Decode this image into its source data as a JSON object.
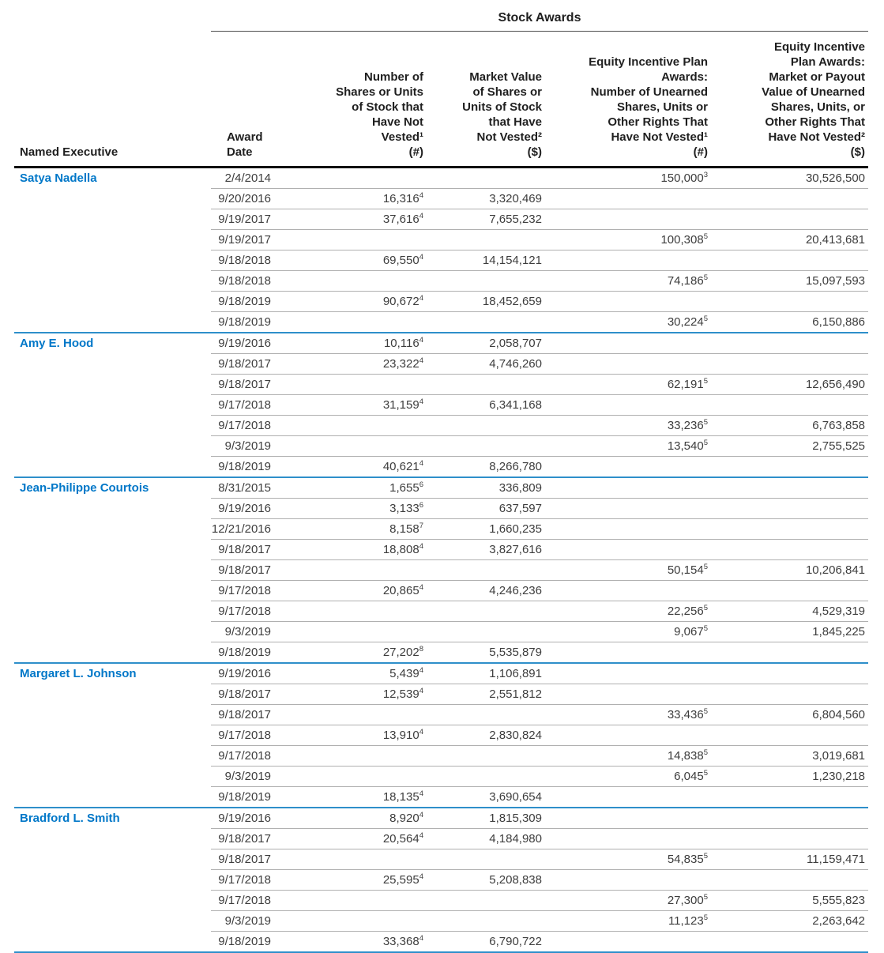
{
  "table": {
    "group_header": "Stock Awards",
    "columns": {
      "named_executive": "Named Executive",
      "award_date": "Award\nDate",
      "shares_not_vested": "Number of\nShares or Units\nof Stock that\nHave Not\nVested¹\n(#)",
      "market_value": "Market Value\nof Shares or\nUnits of Stock\nthat Have\nNot Vested²\n($)",
      "eip_number": "Equity Incentive Plan\nAwards:\nNumber of Unearned\nShares, Units or\nOther Rights That\nHave Not Vested¹\n(#)",
      "eip_value": "Equity Incentive\nPlan Awards:\nMarket or Payout\nValue of Unearned\nShares, Units, or\nOther Rights That\nHave Not Vested²\n($)"
    },
    "colors": {
      "executive_name_blue": "#0077c8",
      "section_divider_blue": "#2e8fca",
      "row_divider_gray": "#b0b0b0",
      "header_rule_black": "#111111"
    },
    "executives": [
      {
        "name": "Satya Nadella",
        "rows": [
          {
            "award_date": "2/4/2014",
            "shares": "",
            "shares_sup": "",
            "market_value": "",
            "eip_shares": "150,000",
            "eip_shares_sup": "3",
            "eip_value": "30,526,500"
          },
          {
            "award_date": "9/20/2016",
            "shares": "16,316",
            "shares_sup": "4",
            "market_value": "3,320,469",
            "eip_shares": "",
            "eip_shares_sup": "",
            "eip_value": ""
          },
          {
            "award_date": "9/19/2017",
            "shares": "37,616",
            "shares_sup": "4",
            "market_value": "7,655,232",
            "eip_shares": "",
            "eip_shares_sup": "",
            "eip_value": ""
          },
          {
            "award_date": "9/19/2017",
            "shares": "",
            "shares_sup": "",
            "market_value": "",
            "eip_shares": "100,308",
            "eip_shares_sup": "5",
            "eip_value": "20,413,681"
          },
          {
            "award_date": "9/18/2018",
            "shares": "69,550",
            "shares_sup": "4",
            "market_value": "14,154,121",
            "eip_shares": "",
            "eip_shares_sup": "",
            "eip_value": ""
          },
          {
            "award_date": "9/18/2018",
            "shares": "",
            "shares_sup": "",
            "market_value": "",
            "eip_shares": "74,186",
            "eip_shares_sup": "5",
            "eip_value": "15,097,593"
          },
          {
            "award_date": "9/18/2019",
            "shares": "90,672",
            "shares_sup": "4",
            "market_value": "18,452,659",
            "eip_shares": "",
            "eip_shares_sup": "",
            "eip_value": ""
          },
          {
            "award_date": "9/18/2019",
            "shares": "",
            "shares_sup": "",
            "market_value": "",
            "eip_shares": "30,224",
            "eip_shares_sup": "5",
            "eip_value": "6,150,886"
          }
        ]
      },
      {
        "name": "Amy E. Hood",
        "rows": [
          {
            "award_date": "9/19/2016",
            "shares": "10,116",
            "shares_sup": "4",
            "market_value": "2,058,707",
            "eip_shares": "",
            "eip_shares_sup": "",
            "eip_value": ""
          },
          {
            "award_date": "9/18/2017",
            "shares": "23,322",
            "shares_sup": "4",
            "market_value": "4,746,260",
            "eip_shares": "",
            "eip_shares_sup": "",
            "eip_value": ""
          },
          {
            "award_date": "9/18/2017",
            "shares": "",
            "shares_sup": "",
            "market_value": "",
            "eip_shares": "62,191",
            "eip_shares_sup": "5",
            "eip_value": "12,656,490"
          },
          {
            "award_date": "9/17/2018",
            "shares": "31,159",
            "shares_sup": "4",
            "market_value": "6,341,168",
            "eip_shares": "",
            "eip_shares_sup": "",
            "eip_value": ""
          },
          {
            "award_date": "9/17/2018",
            "shares": "",
            "shares_sup": "",
            "market_value": "",
            "eip_shares": "33,236",
            "eip_shares_sup": "5",
            "eip_value": "6,763,858"
          },
          {
            "award_date": "9/3/2019",
            "shares": "",
            "shares_sup": "",
            "market_value": "",
            "eip_shares": "13,540",
            "eip_shares_sup": "5",
            "eip_value": "2,755,525"
          },
          {
            "award_date": "9/18/2019",
            "shares": "40,621",
            "shares_sup": "4",
            "market_value": "8,266,780",
            "eip_shares": "",
            "eip_shares_sup": "",
            "eip_value": ""
          }
        ]
      },
      {
        "name": "Jean-Philippe Courtois",
        "rows": [
          {
            "award_date": "8/31/2015",
            "shares": "1,655",
            "shares_sup": "6",
            "market_value": "336,809",
            "eip_shares": "",
            "eip_shares_sup": "",
            "eip_value": ""
          },
          {
            "award_date": "9/19/2016",
            "shares": "3,133",
            "shares_sup": "6",
            "market_value": "637,597",
            "eip_shares": "",
            "eip_shares_sup": "",
            "eip_value": ""
          },
          {
            "award_date": "12/21/2016",
            "shares": "8,158",
            "shares_sup": "7",
            "market_value": "1,660,235",
            "eip_shares": "",
            "eip_shares_sup": "",
            "eip_value": ""
          },
          {
            "award_date": "9/18/2017",
            "shares": "18,808",
            "shares_sup": "4",
            "market_value": "3,827,616",
            "eip_shares": "",
            "eip_shares_sup": "",
            "eip_value": ""
          },
          {
            "award_date": "9/18/2017",
            "shares": "",
            "shares_sup": "",
            "market_value": "",
            "eip_shares": "50,154",
            "eip_shares_sup": "5",
            "eip_value": "10,206,841"
          },
          {
            "award_date": "9/17/2018",
            "shares": "20,865",
            "shares_sup": "4",
            "market_value": "4,246,236",
            "eip_shares": "",
            "eip_shares_sup": "",
            "eip_value": ""
          },
          {
            "award_date": "9/17/2018",
            "shares": "",
            "shares_sup": "",
            "market_value": "",
            "eip_shares": "22,256",
            "eip_shares_sup": "5",
            "eip_value": "4,529,319"
          },
          {
            "award_date": "9/3/2019",
            "shares": "",
            "shares_sup": "",
            "market_value": "",
            "eip_shares": "9,067",
            "eip_shares_sup": "5",
            "eip_value": "1,845,225"
          },
          {
            "award_date": "9/18/2019",
            "shares": "27,202",
            "shares_sup": "8",
            "market_value": "5,535,879",
            "eip_shares": "",
            "eip_shares_sup": "",
            "eip_value": ""
          }
        ]
      },
      {
        "name": "Margaret L. Johnson",
        "rows": [
          {
            "award_date": "9/19/2016",
            "shares": "5,439",
            "shares_sup": "4",
            "market_value": "1,106,891",
            "eip_shares": "",
            "eip_shares_sup": "",
            "eip_value": ""
          },
          {
            "award_date": "9/18/2017",
            "shares": "12,539",
            "shares_sup": "4",
            "market_value": "2,551,812",
            "eip_shares": "",
            "eip_shares_sup": "",
            "eip_value": ""
          },
          {
            "award_date": "9/18/2017",
            "shares": "",
            "shares_sup": "",
            "market_value": "",
            "eip_shares": "33,436",
            "eip_shares_sup": "5",
            "eip_value": "6,804,560"
          },
          {
            "award_date": "9/17/2018",
            "shares": "13,910",
            "shares_sup": "4",
            "market_value": "2,830,824",
            "eip_shares": "",
            "eip_shares_sup": "",
            "eip_value": ""
          },
          {
            "award_date": "9/17/2018",
            "shares": "",
            "shares_sup": "",
            "market_value": "",
            "eip_shares": "14,838",
            "eip_shares_sup": "5",
            "eip_value": "3,019,681"
          },
          {
            "award_date": "9/3/2019",
            "shares": "",
            "shares_sup": "",
            "market_value": "",
            "eip_shares": "6,045",
            "eip_shares_sup": "5",
            "eip_value": "1,230,218"
          },
          {
            "award_date": "9/18/2019",
            "shares": "18,135",
            "shares_sup": "4",
            "market_value": "3,690,654",
            "eip_shares": "",
            "eip_shares_sup": "",
            "eip_value": ""
          }
        ]
      },
      {
        "name": "Bradford L. Smith",
        "rows": [
          {
            "award_date": "9/19/2016",
            "shares": "8,920",
            "shares_sup": "4",
            "market_value": "1,815,309",
            "eip_shares": "",
            "eip_shares_sup": "",
            "eip_value": ""
          },
          {
            "award_date": "9/18/2017",
            "shares": "20,564",
            "shares_sup": "4",
            "market_value": "4,184,980",
            "eip_shares": "",
            "eip_shares_sup": "",
            "eip_value": ""
          },
          {
            "award_date": "9/18/2017",
            "shares": "",
            "shares_sup": "",
            "market_value": "",
            "eip_shares": "54,835",
            "eip_shares_sup": "5",
            "eip_value": "11,159,471"
          },
          {
            "award_date": "9/17/2018",
            "shares": "25,595",
            "shares_sup": "4",
            "market_value": "5,208,838",
            "eip_shares": "",
            "eip_shares_sup": "",
            "eip_value": ""
          },
          {
            "award_date": "9/17/2018",
            "shares": "",
            "shares_sup": "",
            "market_value": "",
            "eip_shares": "27,300",
            "eip_shares_sup": "5",
            "eip_value": "5,555,823"
          },
          {
            "award_date": "9/3/2019",
            "shares": "",
            "shares_sup": "",
            "market_value": "",
            "eip_shares": "11,123",
            "eip_shares_sup": "5",
            "eip_value": "2,263,642"
          },
          {
            "award_date": "9/18/2019",
            "shares": "33,368",
            "shares_sup": "4",
            "market_value": "6,790,722",
            "eip_shares": "",
            "eip_shares_sup": "",
            "eip_value": ""
          }
        ]
      }
    ]
  }
}
